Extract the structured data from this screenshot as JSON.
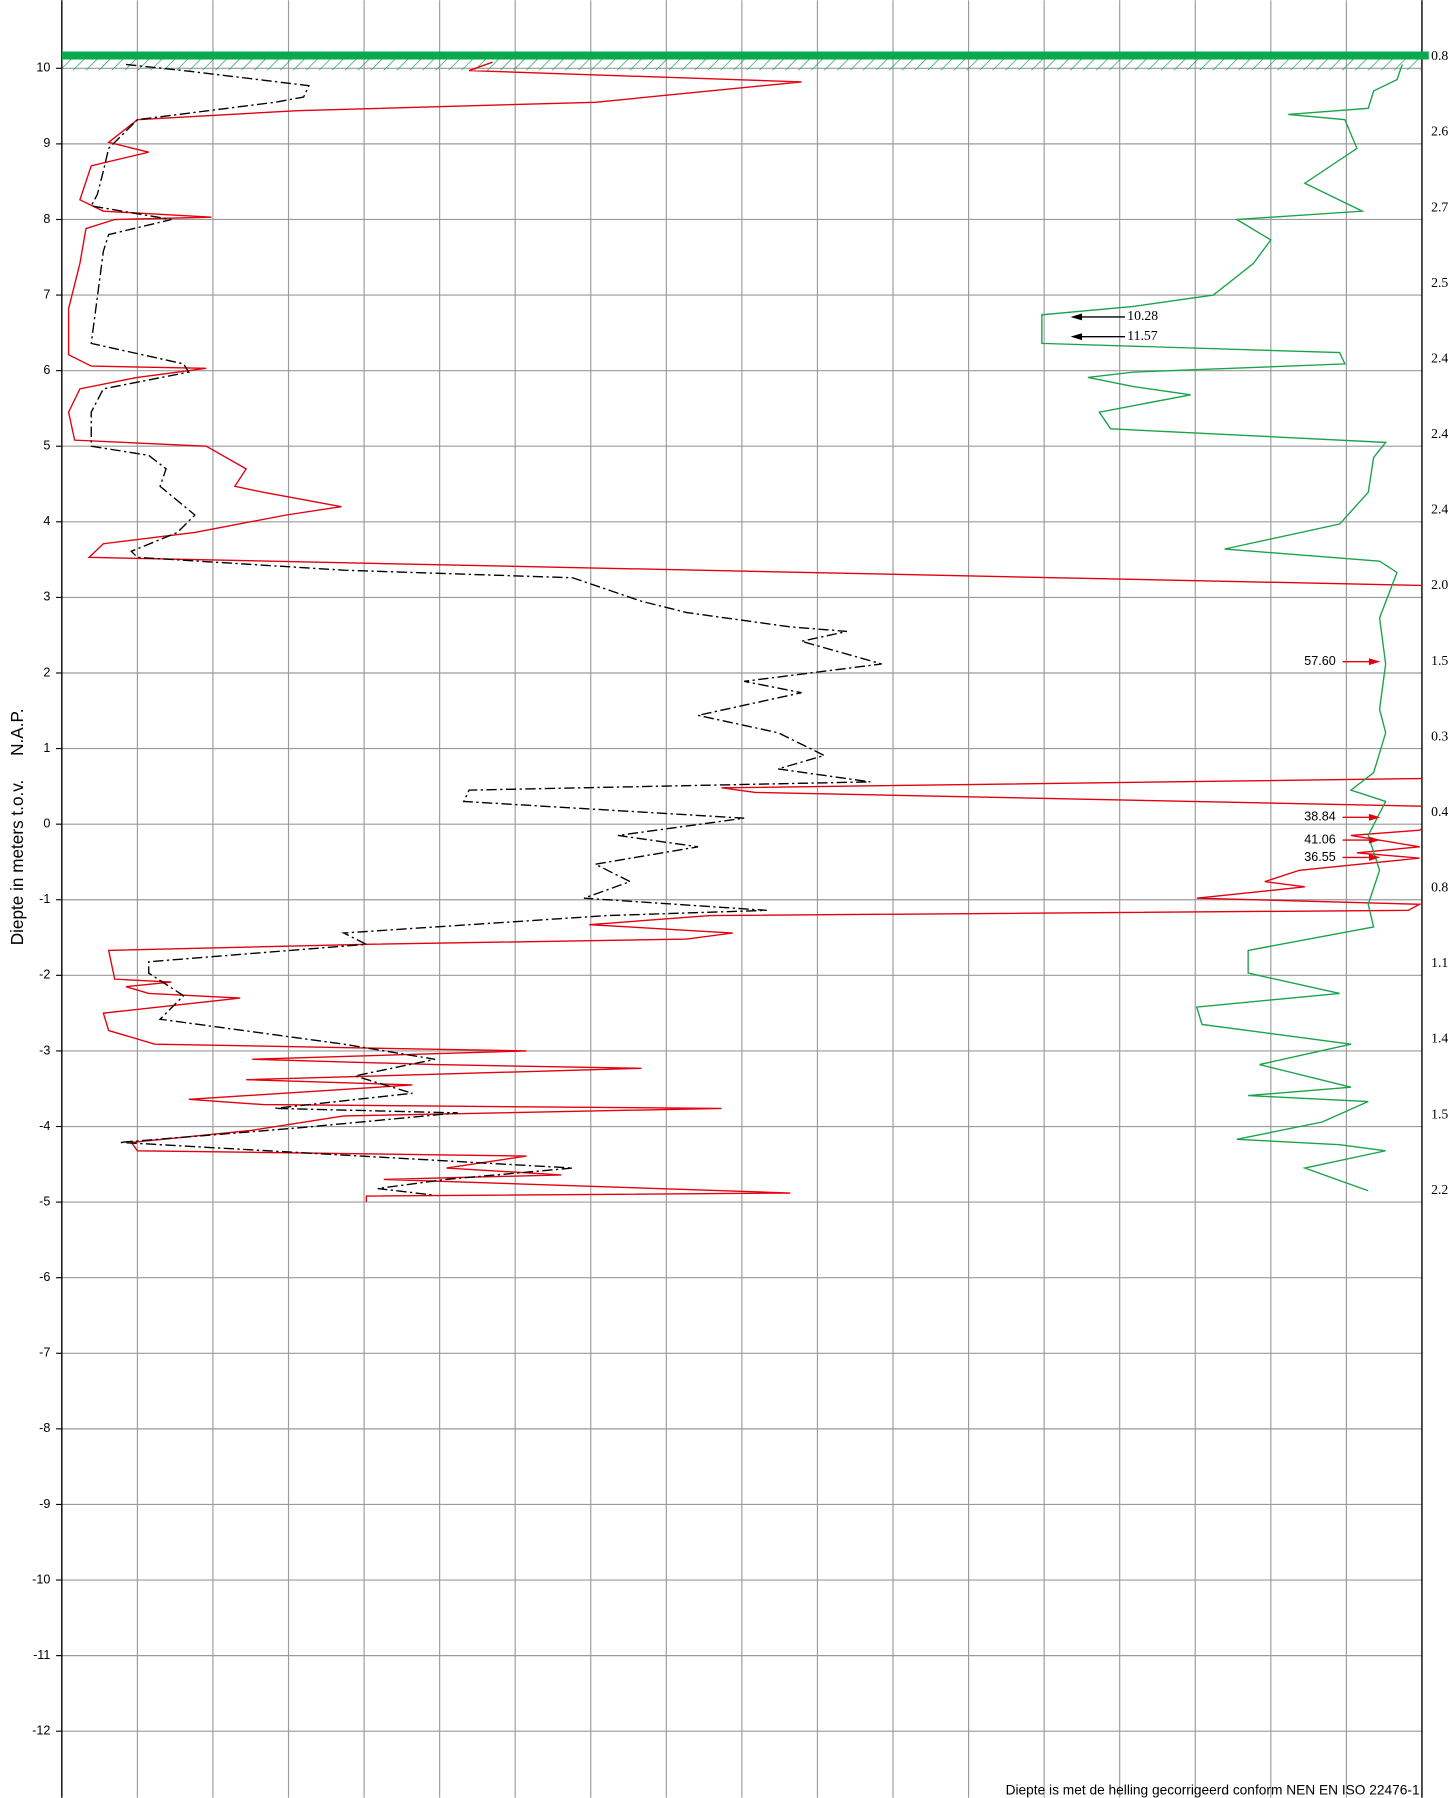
{
  "chart_data": {
    "type": "profile",
    "ylabel": "Diepte in meters t.o.v.     N.A.P.",
    "footer": "Diepte is met de helling gecorrigeerd conform NEN EN ISO 22476-1",
    "ylim": [
      -12.88,
      10.9
    ],
    "yticks": [
      -12,
      -11,
      -10,
      -9,
      -8,
      -7,
      -6,
      -5,
      -4,
      -3,
      -2,
      -1,
      0,
      1,
      2,
      3,
      4,
      5,
      6,
      7,
      8,
      9,
      10
    ],
    "xlim": [
      0,
      18
    ],
    "xticks": [
      1,
      2,
      3,
      4,
      5,
      6,
      7,
      8,
      9,
      10,
      11,
      12,
      13,
      14,
      15,
      16,
      17
    ],
    "grid": true,
    "surface_level": 10.17,
    "surface_color": "#0aa84f",
    "series": [
      {
        "color": "#e3000f",
        "style": "solid",
        "x": [
          5.7,
          5.39,
          9.79,
          7.06,
          3.12,
          1.0,
          0.62,
          1.15,
          0.39,
          0.24,
          0.55,
          1.98,
          0.7,
          0.32,
          0.24,
          0.09,
          0.09,
          0.39,
          1.91,
          1.0,
          0.24,
          0.09,
          0.17,
          1.91,
          2.44,
          2.29,
          2.67,
          3.7,
          2.97,
          1.76,
          0.55,
          0.36,
          18.42,
          18.42,
          8.73,
          9.18,
          18.42,
          17.97,
          17.06,
          17.97,
          17.14,
          17.97,
          16.38,
          15.92,
          16.45,
          15.02,
          17.97,
          17.82,
          8.58,
          6.98,
          8.88,
          8.27,
          4.03,
          0.62,
          0.7,
          1.45,
          0.85,
          1.15,
          2.36,
          0.55,
          0.62,
          1.23,
          6.15,
          2.52,
          4.94,
          7.67,
          2.44,
          4.64,
          1.68,
          2.67,
          8.73,
          3.73,
          2.52,
          0.92,
          1.0,
          6.15,
          5.09,
          6.61,
          4.26,
          9.64,
          4.03,
          4.03
        ],
        "y": [
          10.08,
          9.97,
          9.82,
          9.55,
          9.44,
          9.32,
          9.02,
          8.89,
          8.71,
          8.26,
          8.11,
          8.03,
          8.0,
          7.88,
          7.42,
          6.82,
          6.21,
          6.06,
          6.03,
          5.91,
          5.76,
          5.45,
          5.08,
          5.0,
          4.7,
          4.47,
          4.39,
          4.2,
          4.09,
          3.86,
          3.71,
          3.53,
          3.15,
          0.61,
          0.48,
          0.42,
          0.23,
          -0.08,
          -0.15,
          -0.3,
          -0.38,
          -0.45,
          -0.61,
          -0.76,
          -0.83,
          -0.98,
          -1.06,
          -1.14,
          -1.21,
          -1.33,
          -1.44,
          -1.52,
          -1.59,
          -1.67,
          -2.05,
          -2.09,
          -2.15,
          -2.24,
          -2.3,
          -2.5,
          -2.73,
          -2.91,
          -3.0,
          -3.11,
          -3.18,
          -3.23,
          -3.38,
          -3.45,
          -3.64,
          -3.71,
          -3.76,
          -3.86,
          -4.05,
          -4.21,
          -4.32,
          -4.39,
          -4.55,
          -4.64,
          -4.7,
          -4.88,
          -4.92,
          -5.0
        ]
      },
      {
        "color": "#000000",
        "style": "dashdot",
        "x": [
          0.85,
          1.61,
          3.27,
          3.2,
          2.82,
          1.0,
          0.85,
          0.62,
          0.55,
          0.47,
          0.39,
          1.45,
          0.62,
          0.55,
          0.47,
          0.39,
          1.61,
          1.68,
          0.55,
          0.39,
          0.39,
          1.15,
          1.38,
          1.3,
          1.76,
          1.53,
          0.92,
          1.0,
          3.73,
          6.76,
          7.67,
          8.27,
          9.64,
          10.39,
          9.79,
          10.85,
          9.03,
          9.79,
          8.42,
          9.48,
          10.09,
          9.48,
          10.7,
          5.39,
          5.32,
          9.03,
          7.36,
          8.42,
          7.06,
          7.52,
          6.91,
          9.33,
          7.21,
          3.73,
          4.03,
          1.15,
          1.15,
          1.61,
          1.3,
          3.73,
          4.94,
          3.88,
          4.64,
          2.82,
          5.24,
          3.12,
          0.77,
          6.76,
          5.09,
          4.18,
          4.94
        ],
        "y": [
          10.05,
          9.97,
          9.77,
          9.62,
          9.55,
          9.32,
          9.17,
          8.94,
          8.64,
          8.33,
          8.18,
          8.0,
          7.8,
          7.58,
          6.97,
          6.36,
          6.09,
          5.98,
          5.76,
          5.45,
          5.0,
          4.88,
          4.7,
          4.47,
          4.09,
          3.86,
          3.61,
          3.53,
          3.36,
          3.26,
          2.95,
          2.8,
          2.61,
          2.55,
          2.42,
          2.12,
          1.89,
          1.74,
          1.44,
          1.21,
          0.91,
          0.73,
          0.56,
          0.45,
          0.3,
          0.08,
          -0.15,
          -0.3,
          -0.53,
          -0.76,
          -0.98,
          -1.14,
          -1.21,
          -1.44,
          -1.59,
          -1.82,
          -1.97,
          -2.27,
          -2.58,
          -2.91,
          -3.11,
          -3.33,
          -3.56,
          -3.76,
          -3.82,
          -4.02,
          -4.21,
          -4.55,
          -4.7,
          -4.82,
          -4.91
        ]
      },
      {
        "color": "#1aa34a",
        "style": "solid",
        "x": [
          17.74,
          17.67,
          17.36,
          17.29,
          16.23,
          16.98,
          17.14,
          16.45,
          17.21,
          15.55,
          16.0,
          15.77,
          15.24,
          14.18,
          12.97,
          12.97,
          16.91,
          16.98,
          14.18,
          13.58,
          14.18,
          14.94,
          13.73,
          13.88,
          17.52,
          17.36,
          17.29,
          16.91,
          15.39,
          17.44,
          17.67,
          17.44,
          17.52,
          17.44,
          17.52,
          17.36,
          17.06,
          17.52,
          17.29,
          17.44,
          17.29,
          17.36,
          15.7,
          15.7,
          16.91,
          15.02,
          15.09,
          17.06,
          15.85,
          17.06,
          15.7,
          17.29,
          16.68,
          15.55,
          16.91,
          17.52,
          16.45,
          17.29
        ],
        "y": [
          10.05,
          9.85,
          9.7,
          9.47,
          9.39,
          9.32,
          8.94,
          8.48,
          8.11,
          8.0,
          7.73,
          7.42,
          7.0,
          6.85,
          6.74,
          6.36,
          6.24,
          6.09,
          5.98,
          5.91,
          5.79,
          5.68,
          5.45,
          5.23,
          5.05,
          4.85,
          4.39,
          3.97,
          3.64,
          3.48,
          3.33,
          2.73,
          2.12,
          1.52,
          1.21,
          0.68,
          0.45,
          0.3,
          -0.15,
          -0.61,
          -1.06,
          -1.36,
          -1.67,
          -1.97,
          -2.24,
          -2.42,
          -2.65,
          -2.91,
          -3.18,
          -3.48,
          -3.59,
          -3.67,
          -3.94,
          -4.17,
          -4.24,
          -4.32,
          -4.55,
          -4.85
        ]
      }
    ],
    "right_labels": [
      {
        "depth": 10.15,
        "label": "0.8"
      },
      {
        "depth": 9.15,
        "label": "2.6"
      },
      {
        "depth": 8.15,
        "label": "2.7"
      },
      {
        "depth": 7.15,
        "label": "2.5"
      },
      {
        "depth": 6.15,
        "label": "2.4"
      },
      {
        "depth": 5.15,
        "label": "2.4"
      },
      {
        "depth": 4.15,
        "label": "2.4"
      },
      {
        "depth": 3.15,
        "label": "2.0"
      },
      {
        "depth": 2.15,
        "label": "1.5"
      },
      {
        "depth": 1.15,
        "label": "0.3"
      },
      {
        "depth": 0.15,
        "label": "0.4"
      },
      {
        "depth": -0.85,
        "label": "0.8"
      },
      {
        "depth": -1.85,
        "label": "1.1"
      },
      {
        "depth": -2.85,
        "label": "1.4"
      },
      {
        "depth": -3.85,
        "label": "1.5"
      },
      {
        "depth": -4.85,
        "label": "2.2"
      }
    ],
    "annotations": [
      {
        "label": "10.28",
        "depth": 6.71,
        "color": "#000000",
        "direction": "left"
      },
      {
        "label": "11.57",
        "depth": 6.45,
        "color": "#000000",
        "direction": "left"
      },
      {
        "label": "57.60",
        "depth": 2.15,
        "color": "#e3000f",
        "direction": "right"
      },
      {
        "label": "38.84",
        "depth": 0.09,
        "color": "#e3000f",
        "direction": "right"
      },
      {
        "label": "41.06",
        "depth": -0.21,
        "color": "#e3000f",
        "direction": "right"
      },
      {
        "label": "36.55",
        "depth": -0.44,
        "color": "#e3000f",
        "direction": "right"
      }
    ]
  }
}
